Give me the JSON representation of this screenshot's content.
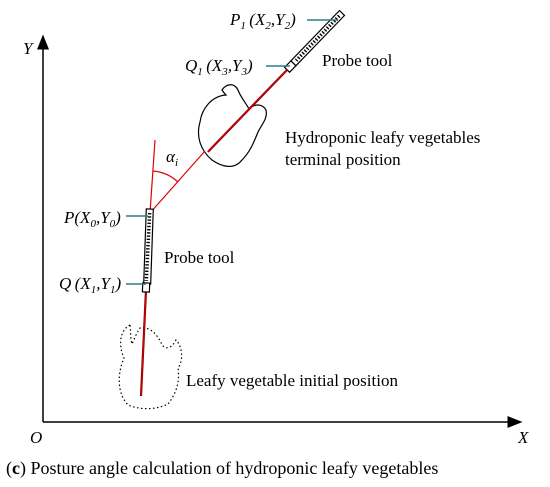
{
  "axes": {
    "y_label": "Y",
    "x_label": "X",
    "origin_label": "O"
  },
  "points": {
    "p1": {
      "name": "P",
      "sub": "1",
      "coords": "(X",
      "c1": "2",
      "sep": ",Y",
      "c2": "2",
      "close": ")"
    },
    "q1": {
      "name": "Q",
      "sub": "1",
      "coords": "(X",
      "c1": "3",
      "sep": ",Y",
      "c2": "3",
      "close": ")"
    },
    "p": {
      "name": "P",
      "coords": "(X",
      "c1": "0",
      "sep": ",Y",
      "c2": "0",
      "close": ")"
    },
    "q": {
      "name": "Q",
      "coords": "(X",
      "c1": "1",
      "sep": ",Y",
      "c2": "1",
      "close": ")"
    }
  },
  "angle": {
    "symbol": "α",
    "sub": "i"
  },
  "labels": {
    "probe_tool_top": "Probe tool",
    "probe_tool_bottom": "Probe tool",
    "terminal_line1": "Hydroponic leafy vegetables",
    "terminal_line2": "terminal position",
    "initial": "Leafy vegetable initial position"
  },
  "caption": {
    "tag": "c",
    "text": " Posture angle calculation of hydroponic leafy vegetables"
  }
}
